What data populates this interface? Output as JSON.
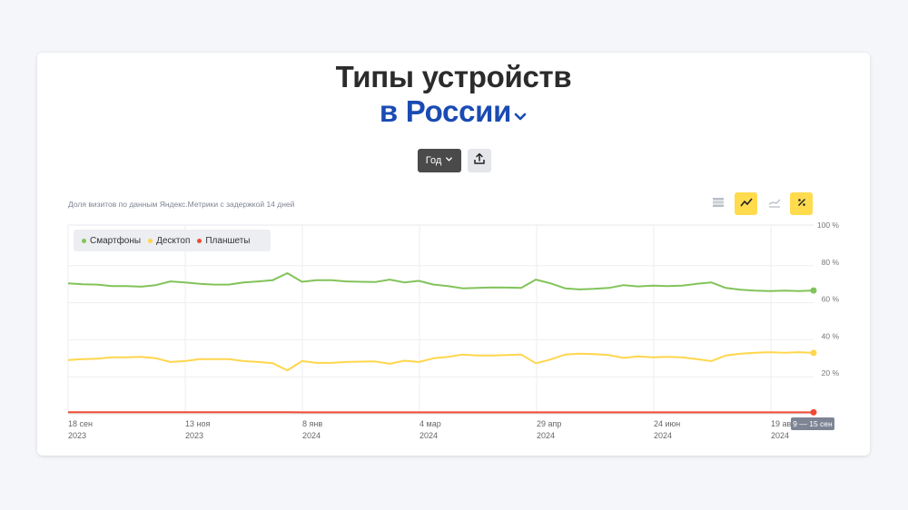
{
  "title": {
    "line1": "Типы устройств",
    "line2": "в России"
  },
  "controls": {
    "period_label": "Год"
  },
  "note": "Доля визитов по данным Яндекс.Метрики с задержкой 14 дней",
  "colors": {
    "accent": "#ffdb4d",
    "title_blue": "#1a4bb3"
  },
  "chart_data": {
    "type": "line",
    "xlabels": [
      {
        "line1": "18 сен",
        "line2": "2023"
      },
      {
        "line1": "13 ноя",
        "line2": "2023"
      },
      {
        "line1": "8 янв",
        "line2": "2024"
      },
      {
        "line1": "4 мар",
        "line2": "2024"
      },
      {
        "line1": "29 апр",
        "line2": "2024"
      },
      {
        "line1": "24 июн",
        "line2": "2024"
      },
      {
        "line1": "19 авг",
        "line2": "2024"
      }
    ],
    "current_label": "9 — 15 сен",
    "yticks": [
      "100 %",
      "80 %",
      "60 %",
      "40 %",
      "20 %"
    ],
    "ylim": [
      0,
      100
    ],
    "grid": true,
    "legend_position": "top-left",
    "series": [
      {
        "name": "Смартфоны",
        "color": "#82c35a",
        "values": [
          70.5,
          70.0,
          69.8,
          69.0,
          69.0,
          68.7,
          69.5,
          71.5,
          71.0,
          70.2,
          69.8,
          69.8,
          71.0,
          71.5,
          72.2,
          76.0,
          71.3,
          72.2,
          72.2,
          71.5,
          71.3,
          71.2,
          72.5,
          71.0,
          71.8,
          69.8,
          69.0,
          67.8,
          68.0,
          68.3,
          68.2,
          68.0,
          72.5,
          70.5,
          67.8,
          67.2,
          67.5,
          68.0,
          69.5,
          68.8,
          69.2,
          69.0,
          69.2,
          70.2,
          71.0,
          68.0,
          67.0,
          66.5,
          66.3,
          66.5,
          66.3,
          66.6
        ]
      },
      {
        "name": "Десктоп",
        "color": "#ffd64d",
        "values": [
          29.0,
          29.5,
          29.8,
          30.5,
          30.5,
          30.8,
          30.0,
          28.0,
          28.5,
          29.5,
          29.5,
          29.5,
          28.5,
          28.0,
          27.3,
          23.5,
          28.5,
          27.5,
          27.5,
          28.0,
          28.2,
          28.3,
          27.0,
          28.7,
          28.0,
          30.0,
          30.8,
          32.0,
          31.5,
          31.5,
          31.7,
          32.0,
          27.3,
          29.3,
          32.0,
          32.5,
          32.2,
          31.7,
          30.2,
          31.0,
          30.5,
          30.8,
          30.5,
          29.5,
          28.5,
          31.5,
          32.5,
          33.0,
          33.3,
          33.0,
          33.3,
          32.9
        ]
      },
      {
        "name": "Планшеты",
        "color": "#f04a34",
        "values": [
          0.9,
          0.9,
          0.9,
          0.9,
          0.9,
          0.9,
          0.9,
          0.9,
          0.9,
          0.9,
          0.9,
          0.9,
          0.9,
          0.9,
          0.9,
          0.9,
          0.8,
          0.8,
          0.8,
          0.8,
          0.8,
          0.8,
          0.8,
          0.8,
          0.8,
          0.8,
          0.8,
          0.8,
          0.8,
          0.8,
          0.8,
          0.8,
          0.8,
          0.8,
          0.8,
          0.8,
          0.8,
          0.8,
          0.8,
          0.8,
          0.8,
          0.8,
          0.8,
          0.8,
          0.8,
          0.8,
          0.8,
          0.8,
          0.8,
          0.8,
          0.8,
          0.8
        ]
      }
    ]
  }
}
